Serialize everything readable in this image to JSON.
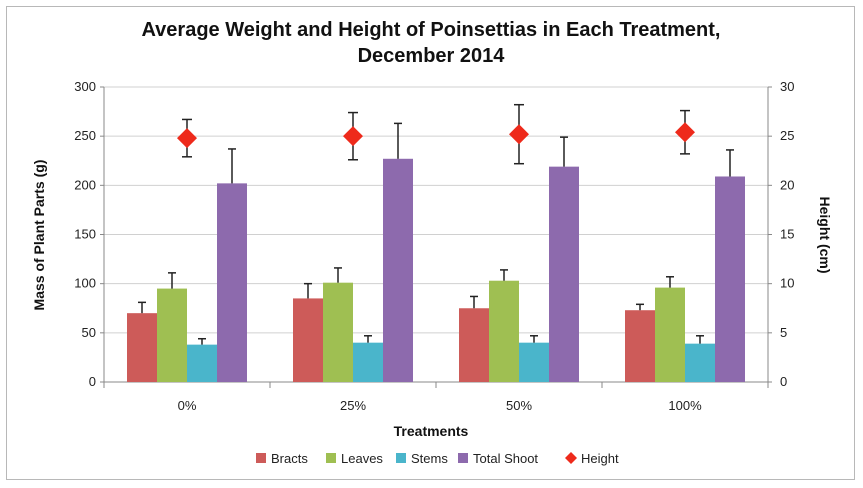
{
  "chart_data": {
    "type": "bar",
    "title": "Average Weight and Height of Poinsettias in Each Treatment,",
    "title_line2": "December 2014",
    "xlabel": "Treatments",
    "ylabel": "Mass of Plant Parts (g)",
    "ylabel_right": "Height (cm)",
    "ylim": [
      0,
      300
    ],
    "ylim_right": [
      0,
      30
    ],
    "yticks": [
      "0",
      "50",
      "100",
      "150",
      "200",
      "250",
      "300"
    ],
    "yticks_right": [
      "0",
      "5",
      "10",
      "15",
      "20",
      "25",
      "30"
    ],
    "categories": [
      "0%",
      "25%",
      "50%",
      "100%"
    ],
    "series": [
      {
        "name": "Bracts",
        "color": "#cd5b59",
        "values": [
          70,
          85,
          75,
          73
        ],
        "errors": [
          11,
          15,
          12,
          6
        ]
      },
      {
        "name": "Leaves",
        "color": "#9fbf52",
        "values": [
          95,
          101,
          103,
          96
        ],
        "errors": [
          16,
          15,
          11,
          11
        ]
      },
      {
        "name": "Stems",
        "color": "#4ab5cb",
        "values": [
          38,
          40,
          40,
          39
        ],
        "errors": [
          6,
          7,
          7,
          8
        ]
      },
      {
        "name": "Total Shoot",
        "color": "#8d6aad",
        "values": [
          202,
          227,
          219,
          209
        ],
        "errors": [
          35,
          36,
          30,
          27
        ]
      }
    ],
    "line_series": {
      "name": "Height",
      "color": "#ee2a1b",
      "axis": "right",
      "values": [
        24.8,
        25.0,
        25.2,
        25.4
      ],
      "errors": [
        1.9,
        2.4,
        3.0,
        2.2
      ]
    },
    "legend": [
      "Bracts",
      "Leaves",
      "Stems",
      "Total Shoot",
      "Height"
    ]
  }
}
